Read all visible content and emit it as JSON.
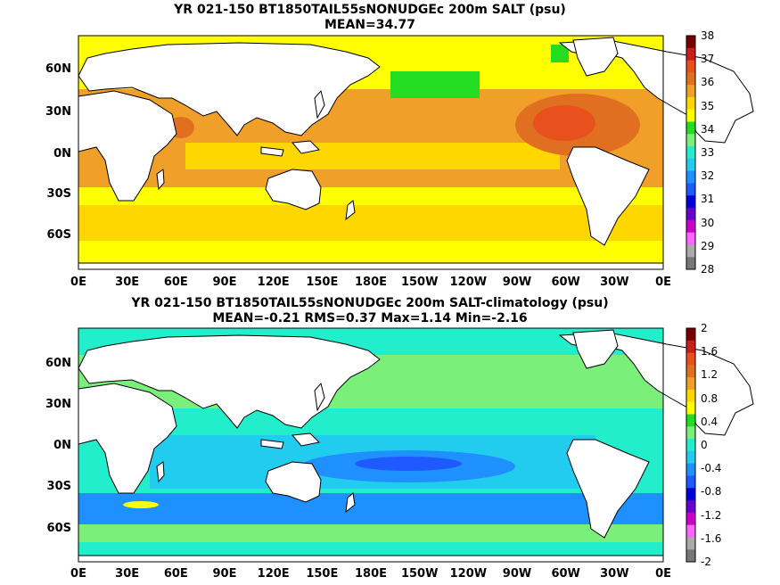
{
  "panels": [
    {
      "title_line1": "YR 021-150 BT1850TAIL55sNONUDGEc 200m SALT (psu)",
      "title_line2": "MEAN=34.77",
      "colorbar": {
        "labels": [
          "38",
          "37",
          "36",
          "35",
          "34",
          "33",
          "32",
          "31",
          "30",
          "29",
          "28"
        ],
        "colors": [
          "#7a0000",
          "#c81e1e",
          "#e8501e",
          "#e07020",
          "#f0a028",
          "#ffd700",
          "#ffff00",
          "#22dd22",
          "#7af07a",
          "#22eecc",
          "#22ccee",
          "#1e90ff",
          "#1e5aff",
          "#0000dd",
          "#6600cc",
          "#cc00cc",
          "#ff66ff",
          "#aaaaaa",
          "#777777"
        ]
      }
    },
    {
      "title_line1": "YR 021-150 BT1850TAIL55sNONUDGEc 200m SALT-climatology (psu)",
      "title_line2": "MEAN=-0.21   RMS=0.37   Max=1.14   Min=-2.16",
      "colorbar": {
        "labels": [
          "2",
          "1.6",
          "1.2",
          "0.8",
          "0.4",
          "0",
          "-0.4",
          "-0.8",
          "-1.2",
          "-1.6",
          "-2"
        ],
        "colors": [
          "#7a0000",
          "#c81e1e",
          "#e8501e",
          "#e07020",
          "#f0a028",
          "#ffd700",
          "#ffff00",
          "#22dd22",
          "#7af07a",
          "#22eecc",
          "#22ccee",
          "#1e90ff",
          "#1e5aff",
          "#0000dd",
          "#6600cc",
          "#cc00cc",
          "#ff66ff",
          "#aaaaaa",
          "#777777"
        ]
      }
    }
  ],
  "lat_labels": [
    "60N",
    "30N",
    "0N",
    "30S",
    "60S"
  ],
  "lon_labels": [
    "0E",
    "30E",
    "60E",
    "90E",
    "120E",
    "150E",
    "180E",
    "150W",
    "120W",
    "90W",
    "60W",
    "30W",
    "0E"
  ]
}
